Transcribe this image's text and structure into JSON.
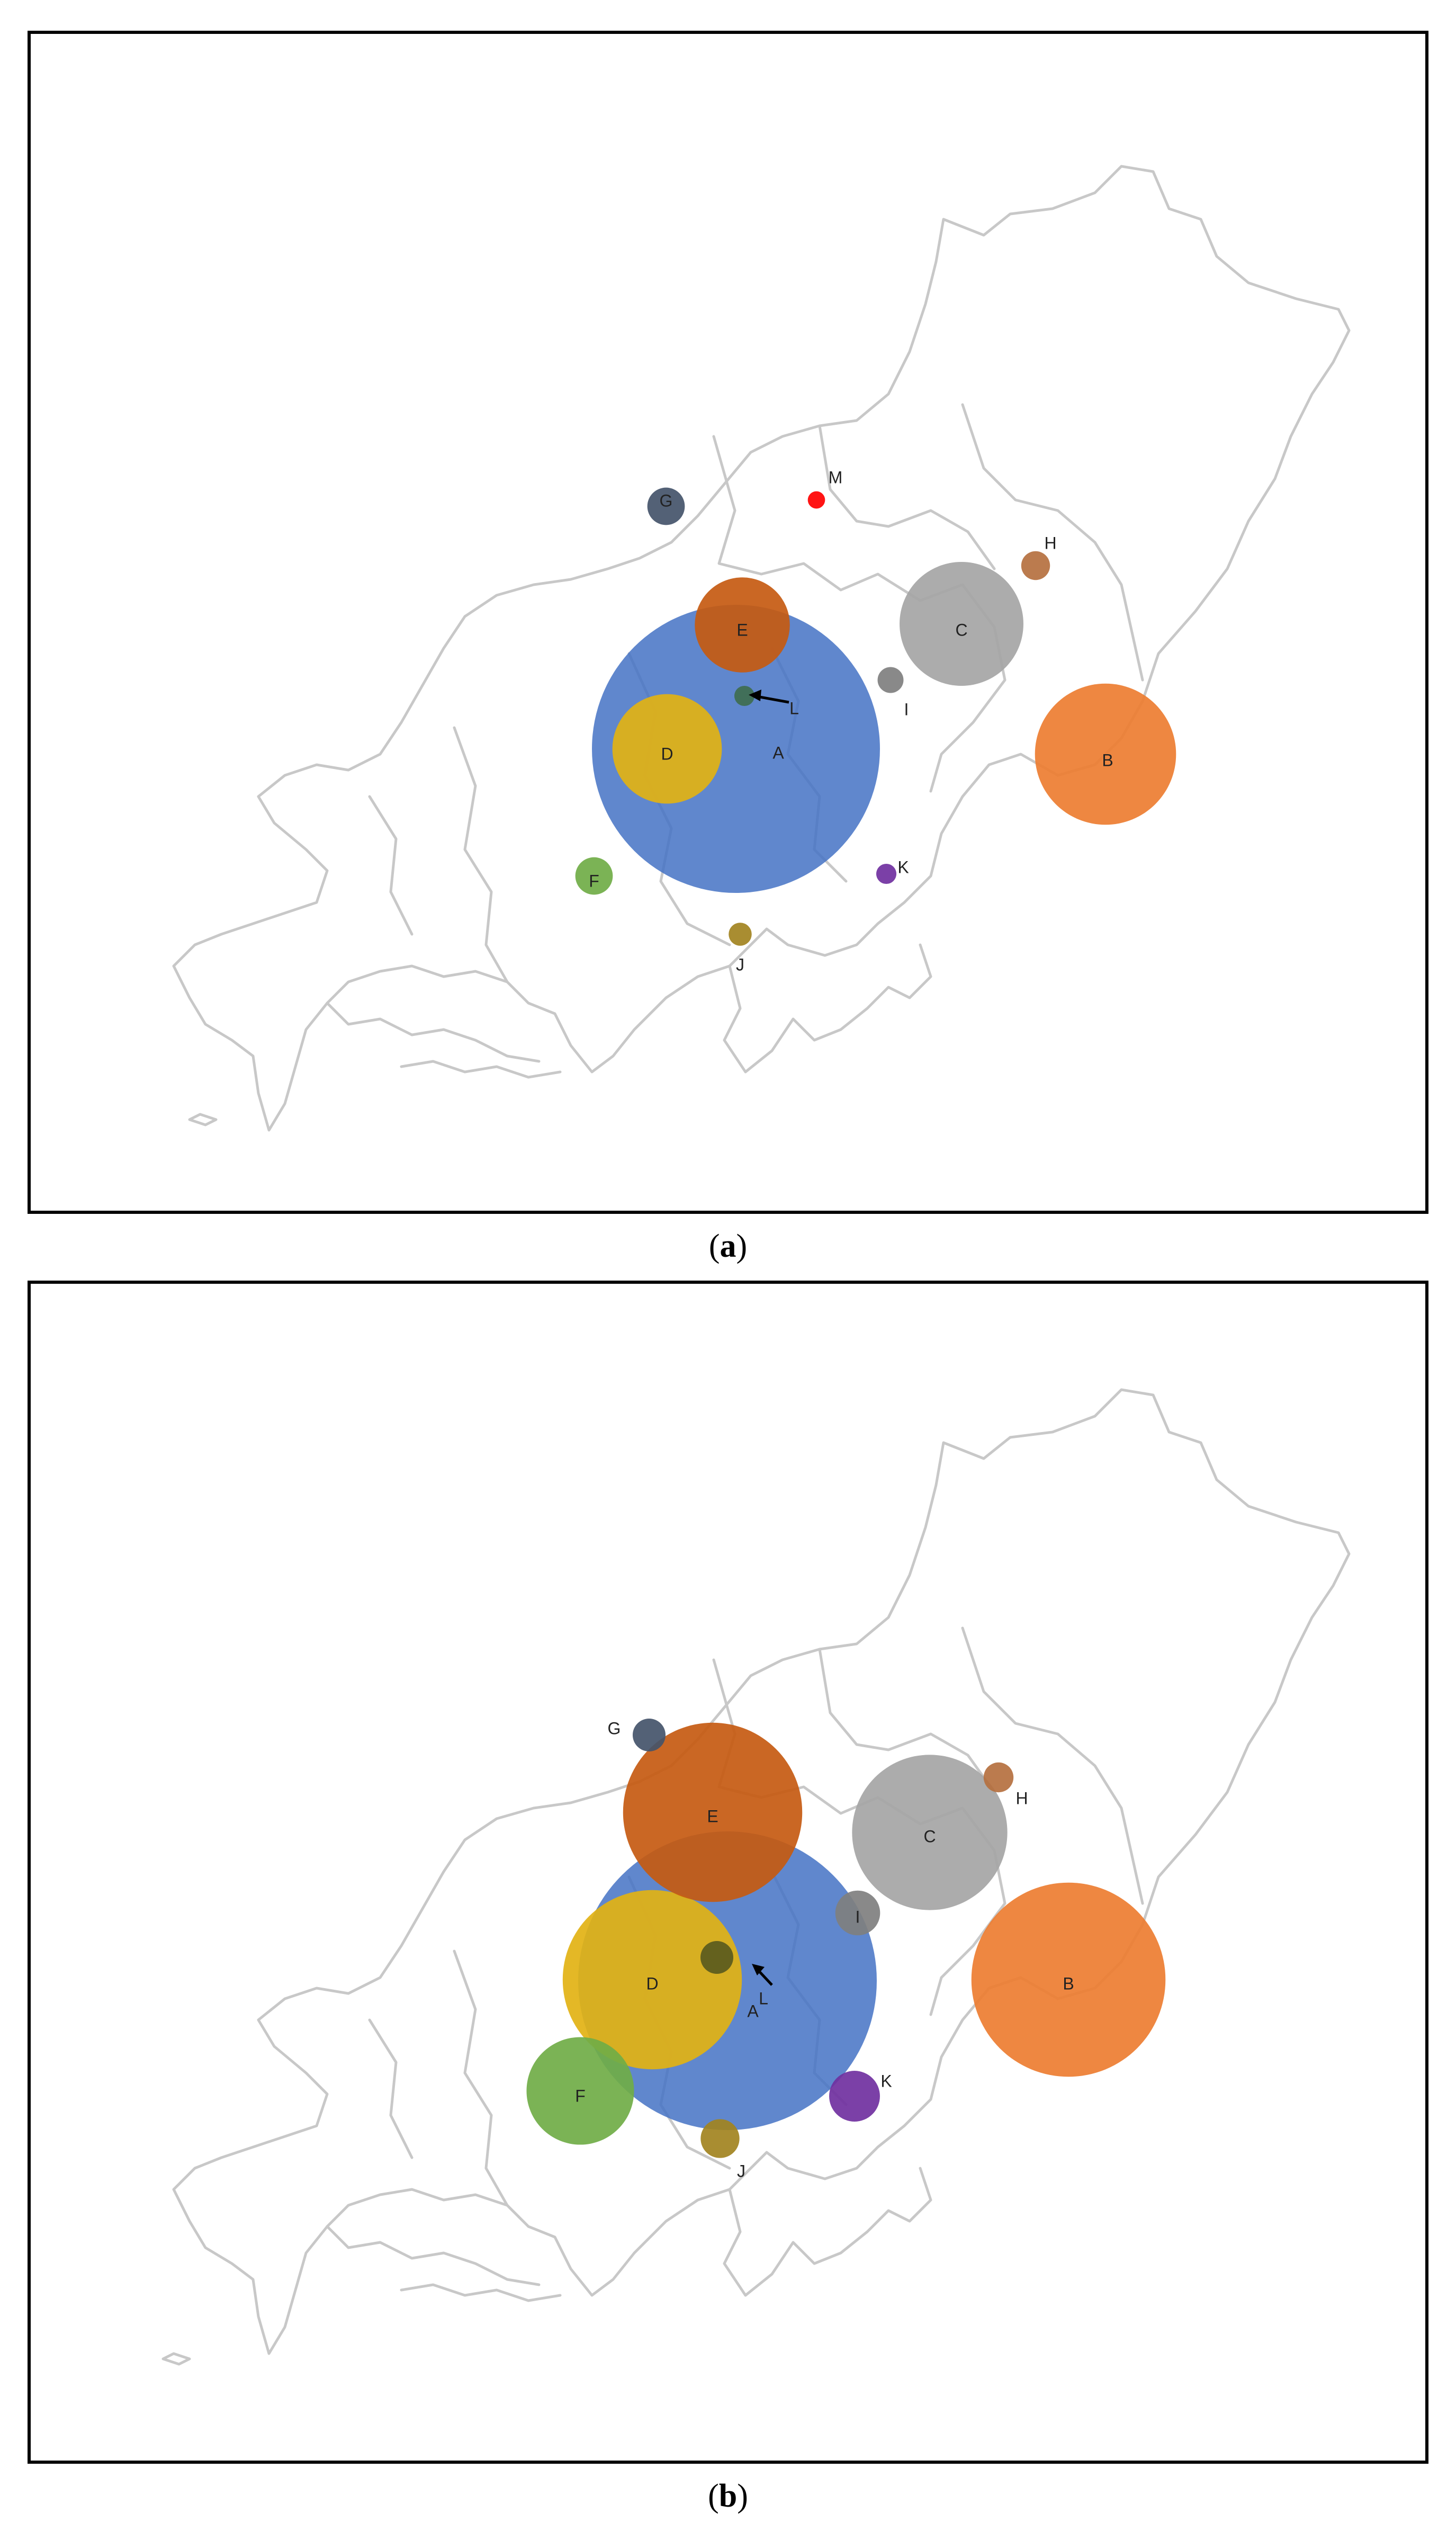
{
  "panels": [
    {
      "id": "a",
      "caption_open": "(",
      "caption_letter": "a",
      "caption_close": ")",
      "markers": [
        {
          "label": "A",
          "color": "#4472C4",
          "size": 1.0
        },
        {
          "label": "B",
          "color": "#ED7D31",
          "size": 0.49
        },
        {
          "label": "C",
          "color": "#A5A5A5",
          "size": 0.43
        },
        {
          "label": "D",
          "color": "#E2B214",
          "size": 0.38
        },
        {
          "label": "E",
          "color": "#C55A11",
          "size": 0.33
        },
        {
          "label": "F",
          "color": "#70AD47",
          "size": 0.13
        },
        {
          "label": "G",
          "color": "#44546A",
          "size": 0.13
        },
        {
          "label": "H",
          "color": "#B5703F",
          "size": 0.1
        },
        {
          "label": "I",
          "color": "#7F7F7F",
          "size": 0.09
        },
        {
          "label": "J",
          "color": "#A28320",
          "size": 0.08
        },
        {
          "label": "K",
          "color": "#7030A0",
          "size": 0.07
        },
        {
          "label": "L",
          "color": "#3F6C4F",
          "size": 0.07
        },
        {
          "label": "M",
          "color": "#FF0000",
          "size": 0.06
        }
      ]
    },
    {
      "id": "b",
      "caption_open": "(",
      "caption_letter": "b",
      "caption_close": ")",
      "markers": [
        {
          "label": "A",
          "color": "#4472C4",
          "size": 1.0
        },
        {
          "label": "B",
          "color": "#ED7D31",
          "size": 0.65
        },
        {
          "label": "C",
          "color": "#A5A5A5",
          "size": 0.52
        },
        {
          "label": "D",
          "color": "#E2B214",
          "size": 0.6
        },
        {
          "label": "E",
          "color": "#C55A11",
          "size": 0.6
        },
        {
          "label": "F",
          "color": "#70AD47",
          "size": 0.36
        },
        {
          "label": "G",
          "color": "#44546A",
          "size": 0.11
        },
        {
          "label": "H",
          "color": "#B5703F",
          "size": 0.1
        },
        {
          "label": "I",
          "color": "#7F7F7F",
          "size": 0.15
        },
        {
          "label": "J",
          "color": "#A28320",
          "size": 0.13
        },
        {
          "label": "K",
          "color": "#7030A0",
          "size": 0.17
        },
        {
          "label": "L",
          "color": "#5A5A1E",
          "size": 0.11
        }
      ]
    }
  ]
}
